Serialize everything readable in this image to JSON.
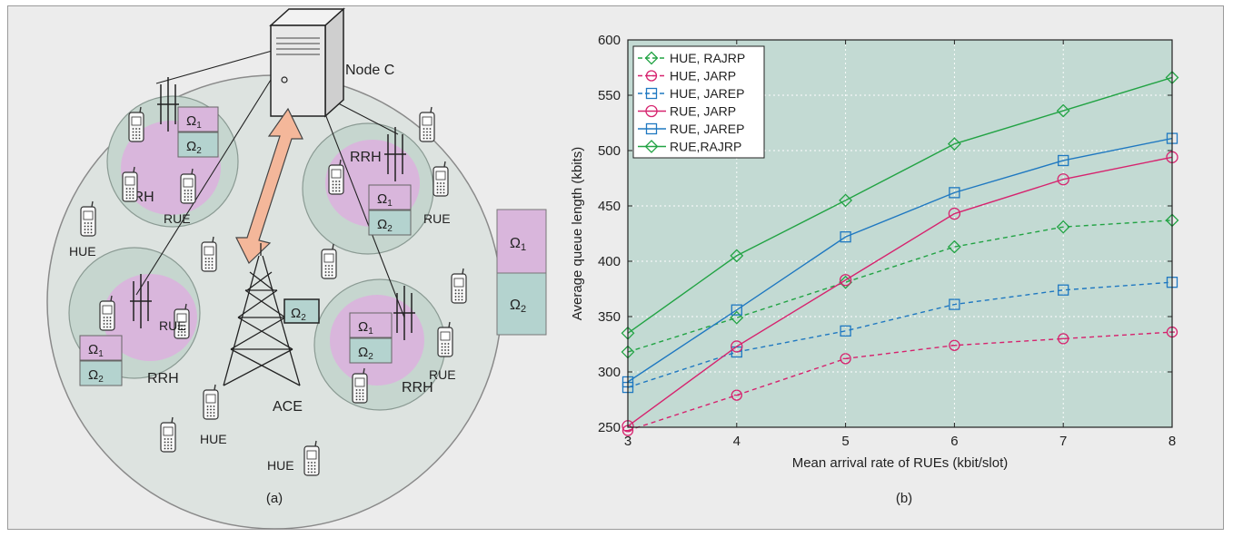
{
  "panel_a": {
    "caption": "(a)",
    "node_c": "Node C",
    "ace": "ACE",
    "rrh": "RRH",
    "rue": "RUE",
    "hue": "HUE",
    "omega1": "Ω",
    "omega2": "Ω",
    "sub1": "1",
    "sub2": "2",
    "colors": {
      "pink": "#d9b6dc",
      "teal": "#b4d3cf",
      "outer": "#dde3e0",
      "cell": "#c6d6cf",
      "arrow": "#f4b79a"
    }
  },
  "panel_b": {
    "caption": "(b)"
  },
  "chart_data": {
    "type": "line",
    "xlabel": "Mean arrival rate of RUEs (kbit/slot)",
    "ylabel": "Average queue length (kbits)",
    "xlim": [
      3,
      8
    ],
    "ylim": [
      250,
      600
    ],
    "xticks": [
      "3",
      "4",
      "5",
      "6",
      "7",
      "8"
    ],
    "yticks": [
      "250",
      "300",
      "350",
      "400",
      "450",
      "500",
      "550",
      "600"
    ],
    "grid": true,
    "legend_position": "top-left",
    "background": "#c3dad3",
    "series": [
      {
        "name": "HUE, RAJRP",
        "color": "#22a344",
        "dash": true,
        "marker": "diamond",
        "x": [
          3,
          4,
          5,
          6,
          7,
          8
        ],
        "y": [
          318,
          349,
          381,
          413,
          431,
          437
        ]
      },
      {
        "name": "HUE, JARP",
        "color": "#d6236e",
        "dash": true,
        "marker": "circle-minus",
        "x": [
          3,
          4,
          5,
          6,
          7,
          8
        ],
        "y": [
          247,
          279,
          312,
          324,
          330,
          336
        ]
      },
      {
        "name": "HUE, JAREP",
        "color": "#1f78c1",
        "dash": true,
        "marker": "square",
        "x": [
          3,
          4,
          5,
          6,
          7,
          8
        ],
        "y": [
          286,
          318,
          337,
          361,
          374,
          381
        ]
      },
      {
        "name": "RUE, JARP",
        "color": "#d6236e",
        "dash": false,
        "marker": "circle",
        "x": [
          3,
          4,
          5,
          6,
          7,
          8
        ],
        "y": [
          251,
          323,
          383,
          443,
          474,
          494
        ]
      },
      {
        "name": "RUE, JAREP",
        "color": "#1f78c1",
        "dash": false,
        "marker": "square",
        "x": [
          3,
          4,
          5,
          6,
          7,
          8
        ],
        "y": [
          291,
          356,
          422,
          462,
          491,
          511
        ]
      },
      {
        "name": "RUE,RAJRP",
        "color": "#22a344",
        "dash": false,
        "marker": "diamond",
        "x": [
          3,
          4,
          5,
          6,
          7,
          8
        ],
        "y": [
          335,
          405,
          455,
          506,
          536,
          566
        ]
      }
    ]
  }
}
